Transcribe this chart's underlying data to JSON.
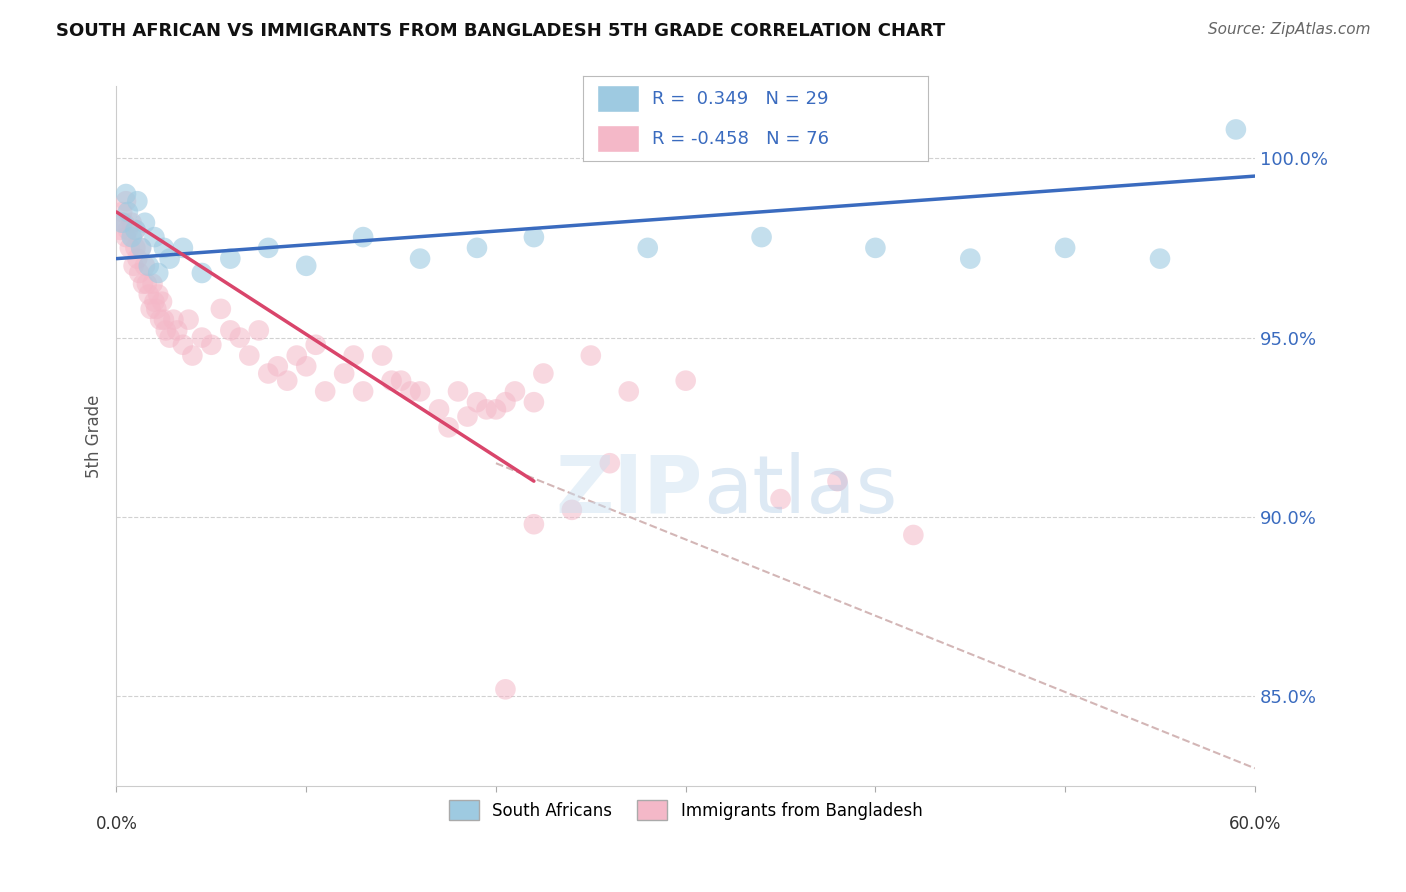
{
  "title": "SOUTH AFRICAN VS IMMIGRANTS FROM BANGLADESH 5TH GRADE CORRELATION CHART",
  "source": "Source: ZipAtlas.com",
  "ylabel": "5th Grade",
  "xlim": [
    0.0,
    60.0
  ],
  "ylim": [
    82.5,
    102.0
  ],
  "yticks": [
    85.0,
    90.0,
    95.0,
    100.0
  ],
  "legend_label1": "South Africans",
  "legend_label2": "Immigrants from Bangladesh",
  "r1": 0.349,
  "n1": 29,
  "r2": -0.458,
  "n2": 76,
  "blue_color": "#9ecae1",
  "pink_color": "#f4b8c8",
  "blue_line_color": "#3a6bbf",
  "pink_line_color": "#d9456b",
  "gray_dash_color": "#ccaaaa",
  "background_color": "#ffffff",
  "grid_color": "#cccccc",
  "blue_x": [
    0.3,
    0.5,
    0.6,
    0.8,
    1.0,
    1.1,
    1.3,
    1.5,
    1.7,
    2.0,
    2.2,
    2.5,
    2.8,
    3.5,
    4.5,
    6.0,
    8.0,
    10.0,
    13.0,
    16.0,
    19.0,
    22.0,
    28.0,
    34.0,
    40.0,
    45.0,
    50.0,
    55.0,
    59.0
  ],
  "blue_y": [
    98.2,
    99.0,
    98.5,
    97.8,
    98.0,
    98.8,
    97.5,
    98.2,
    97.0,
    97.8,
    96.8,
    97.5,
    97.2,
    97.5,
    96.8,
    97.2,
    97.5,
    97.0,
    97.8,
    97.2,
    97.5,
    97.8,
    97.5,
    97.8,
    97.5,
    97.2,
    97.5,
    97.2,
    100.8
  ],
  "pink_x": [
    0.2,
    0.3,
    0.4,
    0.5,
    0.5,
    0.6,
    0.7,
    0.8,
    0.9,
    1.0,
    1.0,
    1.1,
    1.2,
    1.3,
    1.4,
    1.5,
    1.6,
    1.7,
    1.8,
    1.9,
    2.0,
    2.1,
    2.2,
    2.3,
    2.4,
    2.5,
    2.6,
    2.8,
    3.0,
    3.2,
    3.5,
    3.8,
    4.0,
    4.5,
    5.0,
    6.0,
    7.0,
    8.0,
    9.0,
    10.0,
    11.0,
    12.0,
    13.0,
    14.0,
    15.0,
    16.0,
    17.0,
    18.0,
    19.0,
    20.0,
    21.0,
    22.0,
    14.5,
    17.5,
    19.5,
    7.5,
    9.5,
    5.5,
    6.5,
    8.5,
    10.5,
    12.5,
    15.5,
    18.5,
    20.5,
    22.5,
    25.0,
    27.0,
    30.0,
    35.0,
    38.0,
    42.0,
    20.5,
    22.0,
    24.0,
    26.0
  ],
  "pink_y": [
    98.0,
    98.5,
    98.2,
    97.8,
    98.8,
    98.0,
    97.5,
    98.2,
    97.0,
    97.5,
    98.0,
    97.2,
    96.8,
    97.5,
    96.5,
    97.0,
    96.5,
    96.2,
    95.8,
    96.5,
    96.0,
    95.8,
    96.2,
    95.5,
    96.0,
    95.5,
    95.2,
    95.0,
    95.5,
    95.2,
    94.8,
    95.5,
    94.5,
    95.0,
    94.8,
    95.2,
    94.5,
    94.0,
    93.8,
    94.2,
    93.5,
    94.0,
    93.5,
    94.5,
    93.8,
    93.5,
    93.0,
    93.5,
    93.2,
    93.0,
    93.5,
    93.2,
    93.8,
    92.5,
    93.0,
    95.2,
    94.5,
    95.8,
    95.0,
    94.2,
    94.8,
    94.5,
    93.5,
    92.8,
    93.2,
    94.0,
    94.5,
    93.5,
    93.8,
    90.5,
    91.0,
    89.5,
    85.2,
    89.8,
    90.2,
    91.5
  ],
  "blue_line_x0": 0.0,
  "blue_line_y0": 97.2,
  "blue_line_x1": 60.0,
  "blue_line_y1": 99.5,
  "pink_line_x0": 0.0,
  "pink_line_y0": 98.5,
  "pink_line_x1": 22.0,
  "pink_line_y1": 91.0,
  "gray_line_x0": 20.0,
  "gray_line_y0": 91.5,
  "gray_line_x1": 60.0,
  "gray_line_y1": 83.0
}
